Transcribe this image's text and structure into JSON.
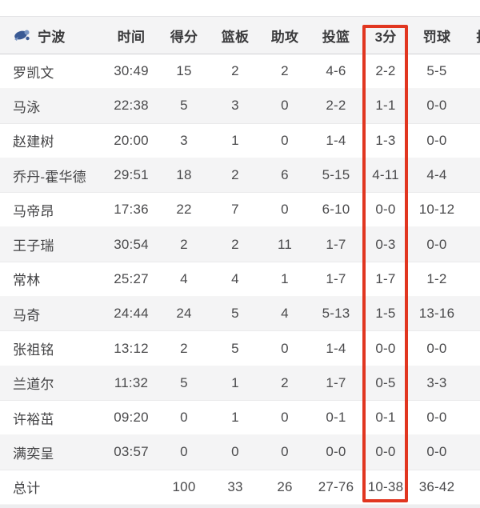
{
  "table": {
    "team": "宁波",
    "columns": [
      {
        "key": "team",
        "label": "宁波"
      },
      {
        "key": "time",
        "label": "时间"
      },
      {
        "key": "points",
        "label": "得分"
      },
      {
        "key": "rebounds",
        "label": "篮板"
      },
      {
        "key": "assists",
        "label": "助攻"
      },
      {
        "key": "field-goals",
        "label": "投篮"
      },
      {
        "key": "three-points",
        "label": "3分"
      },
      {
        "key": "free-throws",
        "label": "罚球"
      },
      {
        "key": "steals-clipped",
        "label": "抢"
      }
    ],
    "rows": [
      {
        "name": "罗凯文",
        "time": "30:49",
        "points": "15",
        "rebounds": "2",
        "assists": "2",
        "fg": "4-6",
        "tp": "2-2",
        "ft": "5-5",
        "stl": ""
      },
      {
        "name": "马泳",
        "time": "22:38",
        "points": "5",
        "rebounds": "3",
        "assists": "0",
        "fg": "2-2",
        "tp": "1-1",
        "ft": "0-0",
        "stl": ""
      },
      {
        "name": "赵建树",
        "time": "20:00",
        "points": "3",
        "rebounds": "1",
        "assists": "0",
        "fg": "1-4",
        "tp": "1-3",
        "ft": "0-0",
        "stl": ""
      },
      {
        "name": "乔丹-霍华德",
        "time": "29:51",
        "points": "18",
        "rebounds": "2",
        "assists": "6",
        "fg": "5-15",
        "tp": "4-11",
        "ft": "4-4",
        "stl": ""
      },
      {
        "name": "马帝昂",
        "time": "17:36",
        "points": "22",
        "rebounds": "7",
        "assists": "0",
        "fg": "6-10",
        "tp": "0-0",
        "ft": "10-12",
        "stl": ""
      },
      {
        "name": "王子瑞",
        "time": "30:54",
        "points": "2",
        "rebounds": "2",
        "assists": "11",
        "fg": "1-7",
        "tp": "0-3",
        "ft": "0-0",
        "stl": ""
      },
      {
        "name": "常林",
        "time": "25:27",
        "points": "4",
        "rebounds": "4",
        "assists": "1",
        "fg": "1-7",
        "tp": "1-7",
        "ft": "1-2",
        "stl": ""
      },
      {
        "name": "马奇",
        "time": "24:44",
        "points": "24",
        "rebounds": "5",
        "assists": "4",
        "fg": "5-13",
        "tp": "1-5",
        "ft": "13-16",
        "stl": ""
      },
      {
        "name": "张祖铭",
        "time": "13:12",
        "points": "2",
        "rebounds": "5",
        "assists": "0",
        "fg": "1-4",
        "tp": "0-0",
        "ft": "0-0",
        "stl": ""
      },
      {
        "name": "兰道尔",
        "time": "11:32",
        "points": "5",
        "rebounds": "1",
        "assists": "2",
        "fg": "1-7",
        "tp": "0-5",
        "ft": "3-3",
        "stl": ""
      },
      {
        "name": "许裕茁",
        "time": "09:20",
        "points": "0",
        "rebounds": "1",
        "assists": "0",
        "fg": "0-1",
        "tp": "0-1",
        "ft": "0-0",
        "stl": ""
      },
      {
        "name": "满奕呈",
        "time": "03:57",
        "points": "0",
        "rebounds": "0",
        "assists": "0",
        "fg": "0-0",
        "tp": "0-0",
        "ft": "0-0",
        "stl": ""
      }
    ],
    "totals": {
      "name": "总计",
      "time": "",
      "points": "100",
      "rebounds": "33",
      "assists": "26",
      "fg": "27-76",
      "tp": "10-38",
      "ft": "36-42",
      "stl": ""
    },
    "highlight": {
      "column_label": "3分",
      "color": "#e13620"
    },
    "logo_colors": {
      "primary": "#3a5a94",
      "secondary": "#7b97c4"
    }
  }
}
